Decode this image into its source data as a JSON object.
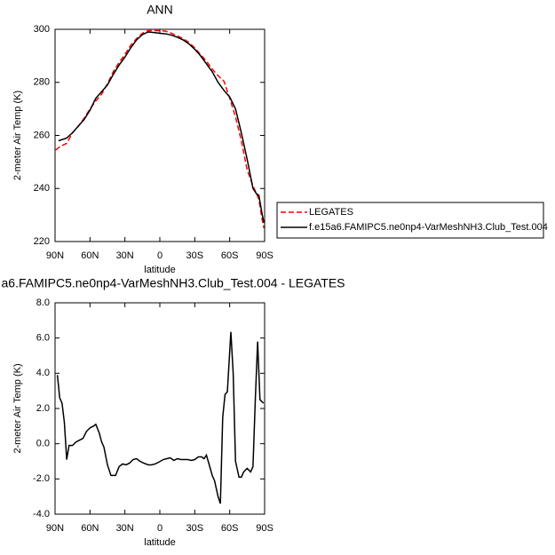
{
  "chart_data": [
    {
      "type": "line",
      "title": "ANN",
      "xlabel": "latitude",
      "ylabel": "2-meter Air Temp (K)",
      "xlim": [
        90,
        -90
      ],
      "xticks": [
        {
          "value": 90,
          "label": "90N"
        },
        {
          "value": 60,
          "label": "60N"
        },
        {
          "value": 30,
          "label": "30N"
        },
        0,
        {
          "value": -30,
          "label": "30S"
        },
        {
          "value": -60,
          "label": "60S"
        },
        {
          "value": -90,
          "label": "90S"
        }
      ],
      "ylim": [
        220,
        300
      ],
      "yticks": [
        220,
        240,
        260,
        280,
        300
      ],
      "legend": "right",
      "series": [
        {
          "name": "LEGATES",
          "color": "#ff0000",
          "style": "dashed",
          "x": [
            89.5,
            85,
            80,
            75,
            70,
            65,
            60,
            55,
            50,
            45,
            40,
            35,
            30,
            25,
            20,
            15,
            10,
            5,
            0,
            -5,
            -10,
            -15,
            -20,
            -25,
            -30,
            -35,
            -40,
            -45,
            -50,
            -55,
            -60,
            -65,
            -70,
            -75,
            -80,
            -85,
            -88,
            -89.5
          ],
          "values": [
            254.5,
            256,
            257,
            261,
            263.5,
            266.5,
            270,
            273,
            275.5,
            279.5,
            284,
            287.5,
            290.5,
            294,
            296.5,
            298.5,
            299.5,
            299.5,
            299.5,
            299.3,
            298.5,
            297.5,
            296.5,
            295,
            293,
            290.5,
            288,
            285,
            282.5,
            280.5,
            274,
            267,
            258,
            247,
            241,
            236,
            228,
            225
          ]
        },
        {
          "name": "f.e15a6.FAMIPC5.ne0np4-VarMeshNH3.Club_Test.004",
          "color": "#000000",
          "style": "solid",
          "x": [
            87,
            80,
            75,
            70,
            65,
            60,
            55,
            50,
            45,
            40,
            35,
            30,
            25,
            20,
            15,
            10,
            5,
            0,
            -5,
            -10,
            -15,
            -20,
            -25,
            -30,
            -35,
            -40,
            -45,
            -50,
            -55,
            -60,
            -65,
            -70,
            -75,
            -80,
            -83,
            -85,
            -88,
            -89.5
          ],
          "values": [
            258,
            259,
            261,
            263.5,
            266,
            269.5,
            274,
            276.5,
            279,
            283,
            286.5,
            289.5,
            293,
            296,
            298,
            299,
            298.8,
            298.5,
            298.3,
            297.8,
            297,
            296,
            294.5,
            292.5,
            290,
            287,
            284,
            280,
            277,
            274.5,
            270,
            261,
            251,
            240,
            238,
            237.5,
            230,
            227
          ]
        }
      ]
    },
    {
      "type": "line",
      "title": "a6.FAMIPC5.ne0np4-VarMeshNH3.Club_Test.004 - LEGATES",
      "xlabel": "latitude",
      "ylabel": "2-meter Air Temp (K)",
      "xlim": [
        90,
        -90
      ],
      "xticks": [
        {
          "value": 90,
          "label": "90N"
        },
        {
          "value": 60,
          "label": "60N"
        },
        {
          "value": 30,
          "label": "30N"
        },
        0,
        {
          "value": -30,
          "label": "30S"
        },
        {
          "value": -60,
          "label": "60S"
        },
        {
          "value": -90,
          "label": "90S"
        }
      ],
      "ylim": [
        -4,
        8
      ],
      "yticks": [
        {
          "value": -4,
          "label": "-4.0"
        },
        {
          "value": -2,
          "label": "-2.0"
        },
        {
          "value": 0,
          "label": "0.0"
        },
        {
          "value": 2,
          "label": "2.0"
        },
        {
          "value": 4,
          "label": "4.0"
        },
        {
          "value": 6,
          "label": "6.0"
        },
        {
          "value": 8,
          "label": "8.0"
        }
      ],
      "series": [
        {
          "color": "#000000",
          "style": "solid",
          "x": [
            88,
            86,
            84,
            82,
            80,
            78,
            75,
            72,
            69,
            66,
            63,
            60,
            57,
            55,
            52,
            50,
            48,
            45,
            42,
            38,
            35,
            32,
            29,
            26,
            23,
            20,
            17,
            14,
            10,
            7,
            4,
            1,
            -3,
            -6,
            -9,
            -12,
            -15,
            -18,
            -21,
            -24,
            -27,
            -30,
            -33,
            -36,
            -38,
            -40,
            -42,
            -45,
            -47,
            -50,
            -52,
            -54,
            -56,
            -58,
            -61,
            -63,
            -65,
            -68,
            -70,
            -72,
            -75,
            -78,
            -80,
            -82,
            -84,
            -86,
            -89
          ],
          "values": [
            3.9,
            2.6,
            2.3,
            1.2,
            -0.9,
            -0.1,
            -0.1,
            0.1,
            0.2,
            0.3,
            0.7,
            0.9,
            1.0,
            1.1,
            0.6,
            0.1,
            -0.2,
            -1.2,
            -1.8,
            -1.8,
            -1.3,
            -1.15,
            -1.2,
            -1.1,
            -0.9,
            -0.85,
            -1.0,
            -1.1,
            -1.2,
            -1.2,
            -1.15,
            -1.05,
            -0.9,
            -0.85,
            -0.8,
            -0.95,
            -0.85,
            -0.9,
            -0.9,
            -0.9,
            -0.95,
            -0.9,
            -0.75,
            -0.75,
            -0.85,
            -0.65,
            -1.1,
            -1.8,
            -2.1,
            -3.0,
            -3.4,
            1.5,
            2.8,
            2.95,
            6.35,
            4.0,
            -1.0,
            -1.9,
            -1.9,
            -1.6,
            -1.4,
            -1.6,
            -1.3,
            2.5,
            5.8,
            2.5,
            2.3
          ]
        }
      ]
    }
  ]
}
